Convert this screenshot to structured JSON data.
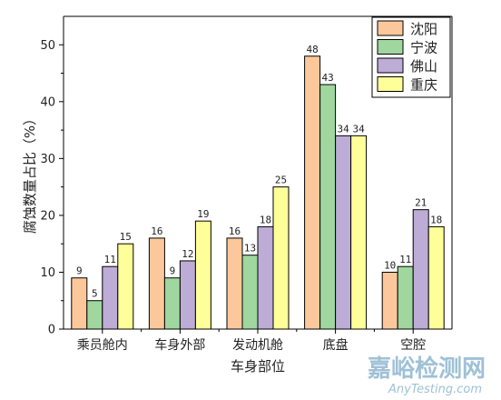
{
  "chart_data": {
    "type": "bar",
    "categories": [
      "乘员舱内",
      "车身外部",
      "发动机舱",
      "底盘",
      "空腔"
    ],
    "series": [
      {
        "name": "沈阳",
        "color": "#fcc89b",
        "values": [
          9,
          16,
          16,
          48,
          10
        ]
      },
      {
        "name": "宁波",
        "color": "#9fd79f",
        "values": [
          5,
          9,
          13,
          43,
          11
        ]
      },
      {
        "name": "佛山",
        "color": "#bcacd6",
        "values": [
          11,
          12,
          18,
          34,
          21
        ]
      },
      {
        "name": "重庆",
        "color": "#ffff99",
        "values": [
          15,
          19,
          25,
          34,
          18
        ]
      }
    ],
    "xlabel": "车身部位",
    "ylabel": "腐蚀数量占比（%）",
    "ylim": [
      0,
      55
    ],
    "yticks": [
      0,
      10,
      20,
      30,
      40,
      50
    ],
    "grid": false,
    "legend_position": "top-right"
  },
  "watermark": {
    "line1": "嘉峪检测网",
    "line2": "AnyTesting.com"
  }
}
